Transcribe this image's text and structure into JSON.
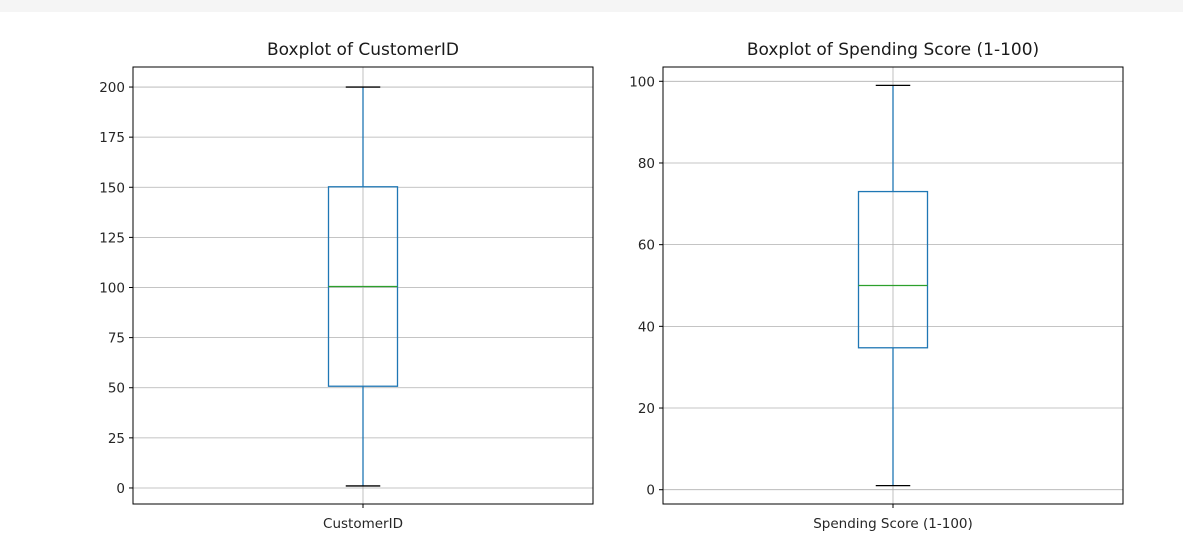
{
  "chart_data": [
    {
      "type": "box",
      "title": "Boxplot of CustomerID",
      "category": "CustomerID",
      "ylim": [
        -8,
        210
      ],
      "yticks": [
        0,
        25,
        50,
        75,
        100,
        125,
        150,
        175,
        200
      ],
      "stats": {
        "min": 1,
        "q1": 50.75,
        "median": 100.5,
        "q3": 150.25,
        "max": 200
      },
      "grid": true
    },
    {
      "type": "box",
      "title": "Boxplot of Spending Score (1-100)",
      "category": "Spending Score (1-100)",
      "ylim": [
        -3.5,
        103.5
      ],
      "yticks": [
        0,
        20,
        40,
        60,
        80,
        100
      ],
      "stats": {
        "min": 1,
        "q1": 34.75,
        "median": 50,
        "q3": 73,
        "max": 99
      },
      "grid": true
    }
  ],
  "colors": {
    "box": "#1f77b4",
    "median": "#2ca02c",
    "grid": "#b0b0b0",
    "axis": "#000000"
  }
}
